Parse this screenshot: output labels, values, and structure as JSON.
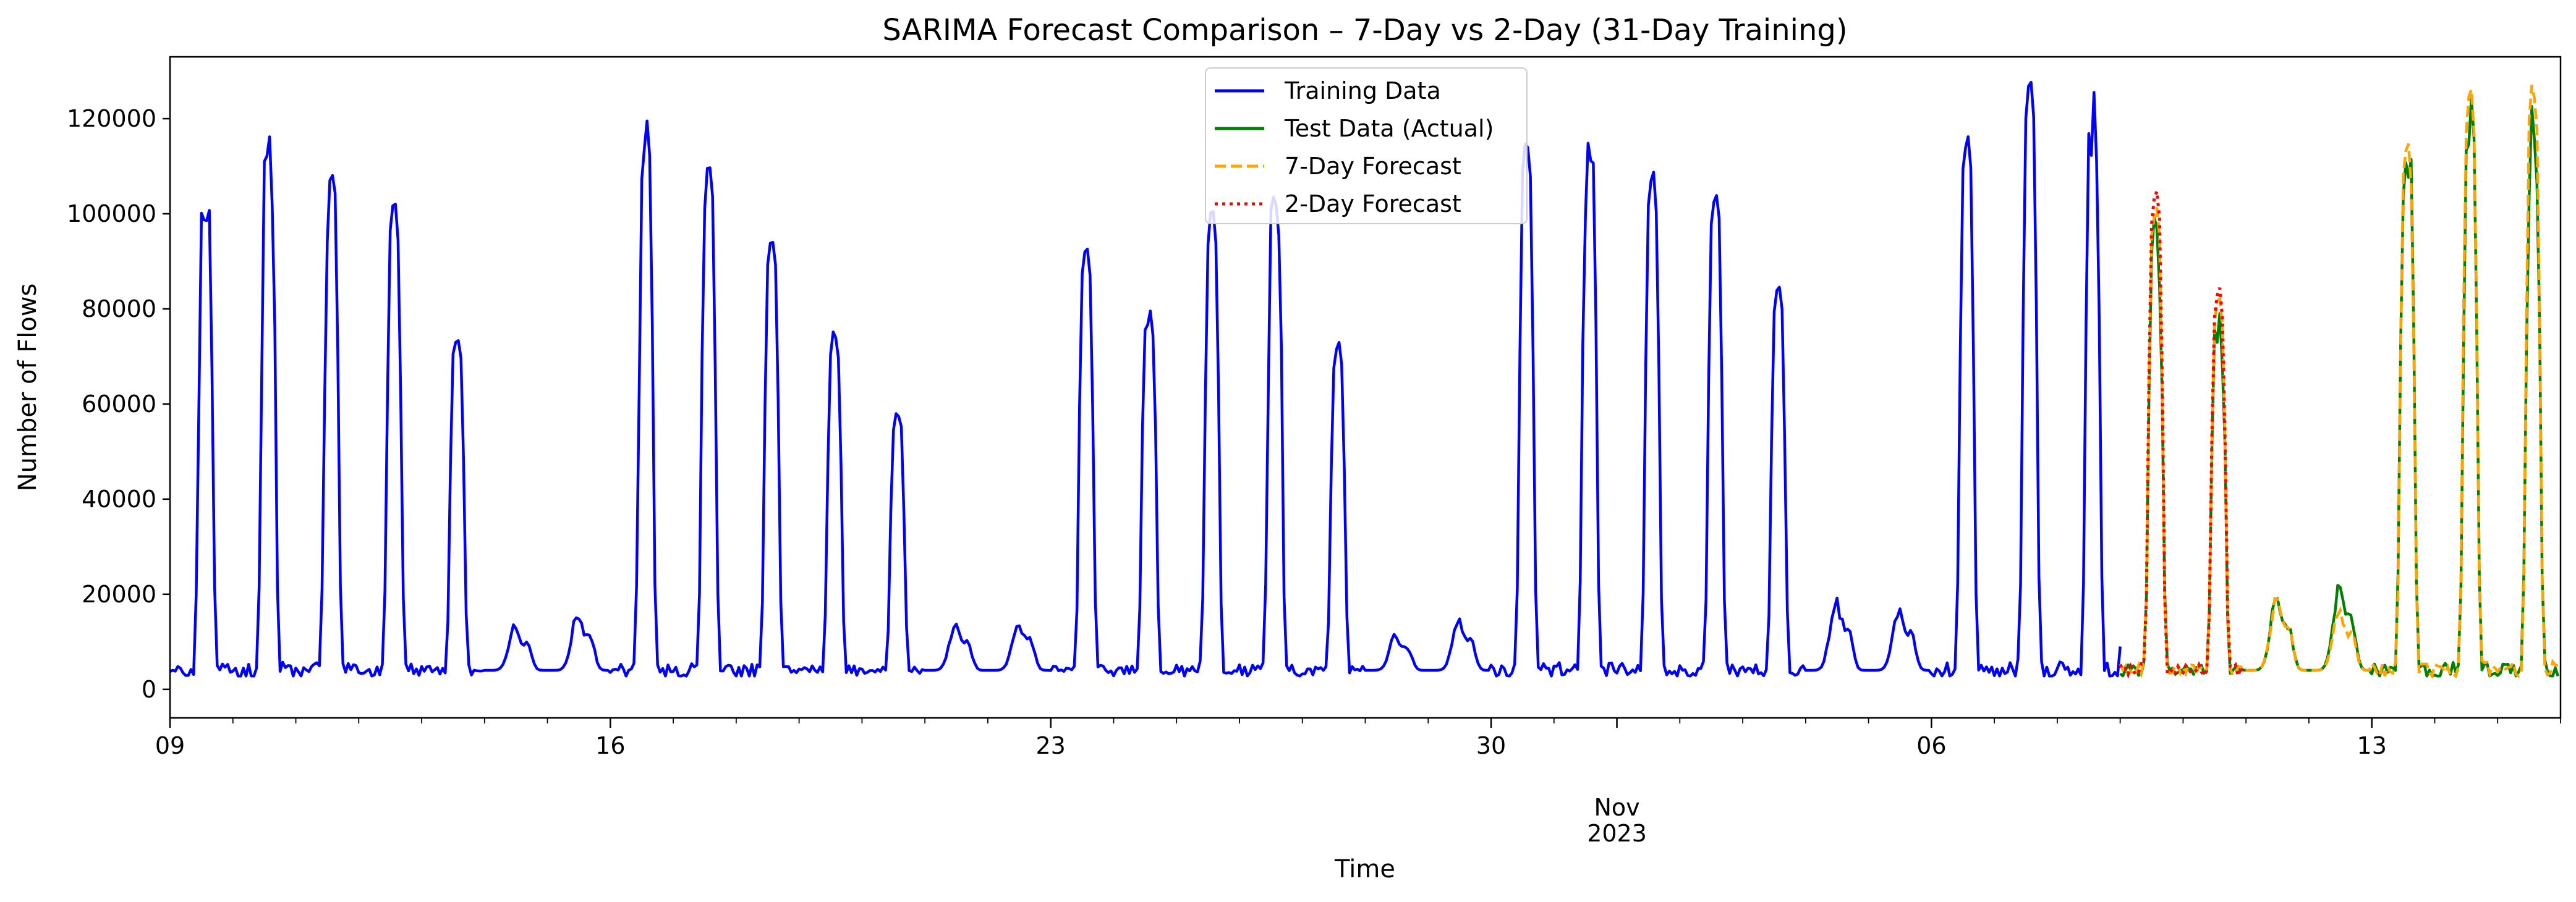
{
  "chart_data": {
    "type": "line",
    "title": "SARIMA Forecast Comparison – 7-Day vs 2-Day (31-Day Training)",
    "xlabel": "Time",
    "ylabel": "Number of Flows",
    "x_range": [
      "2023-10-09",
      "2023-11-16"
    ],
    "ylim": [
      -6000,
      133000
    ],
    "y_ticks": [
      0,
      20000,
      40000,
      60000,
      80000,
      100000,
      120000
    ],
    "x_ticks": [
      {
        "date": "2023-10-09",
        "label": "09"
      },
      {
        "date": "2023-10-16",
        "label": "16"
      },
      {
        "date": "2023-10-23",
        "label": "23"
      },
      {
        "date": "2023-10-30",
        "label": "30"
      },
      {
        "date": "2023-11-06",
        "label": "06"
      },
      {
        "date": "2023-11-13",
        "label": "13"
      }
    ],
    "x_secondary_label": {
      "date": "2023-11-01",
      "month": "Nov",
      "year": "2023"
    },
    "grid": false,
    "legend_position": "top-center",
    "training": {
      "name": "Training Data",
      "color": "#0000ff",
      "peaks": [
        {
          "day": "2023-10-09",
          "peak": 108000,
          "shape": "double"
        },
        {
          "day": "2023-10-10",
          "peak": 118000,
          "shape": "spiky"
        },
        {
          "day": "2023-10-11",
          "peak": 112000,
          "shape": "spiky"
        },
        {
          "day": "2023-10-12",
          "peak": 101000,
          "shape": "smooth"
        },
        {
          "day": "2023-10-13",
          "peak": 74000,
          "shape": "smooth"
        },
        {
          "day": "2023-10-14",
          "peak": 18000,
          "shape": "weekend"
        },
        {
          "day": "2023-10-15",
          "peak": 22000,
          "shape": "weekend"
        },
        {
          "day": "2023-10-16",
          "peak": 122000,
          "shape": "spiky"
        },
        {
          "day": "2023-10-17",
          "peak": 109000,
          "shape": "smooth"
        },
        {
          "day": "2023-10-18",
          "peak": 95000,
          "shape": "smooth"
        },
        {
          "day": "2023-10-19",
          "peak": 75000,
          "shape": "smooth"
        },
        {
          "day": "2023-10-20",
          "peak": 58000,
          "shape": "smooth"
        },
        {
          "day": "2023-10-21",
          "peak": 18000,
          "shape": "weekend"
        },
        {
          "day": "2023-10-22",
          "peak": 19000,
          "shape": "weekend"
        },
        {
          "day": "2023-10-23",
          "peak": 92000,
          "shape": "smooth"
        },
        {
          "day": "2023-10-24",
          "peak": 87000,
          "shape": "spiky"
        },
        {
          "day": "2023-10-25",
          "peak": 100000,
          "shape": "smooth"
        },
        {
          "day": "2023-10-26",
          "peak": 112000,
          "shape": "spiky"
        },
        {
          "day": "2023-10-27",
          "peak": 72000,
          "shape": "smooth"
        },
        {
          "day": "2023-10-28",
          "peak": 15000,
          "shape": "weekend"
        },
        {
          "day": "2023-10-29",
          "peak": 20000,
          "shape": "weekend"
        },
        {
          "day": "2023-10-30",
          "peak": 114000,
          "shape": "smooth"
        },
        {
          "day": "2023-10-31",
          "peak": 121000,
          "shape": "spiky"
        },
        {
          "day": "2023-11-01",
          "peak": 108000,
          "shape": "smooth"
        },
        {
          "day": "2023-11-02",
          "peak": 104000,
          "shape": "smooth"
        },
        {
          "day": "2023-11-03",
          "peak": 84000,
          "shape": "smooth"
        },
        {
          "day": "2023-11-04",
          "peak": 26000,
          "shape": "weekend"
        },
        {
          "day": "2023-11-05",
          "peak": 23000,
          "shape": "weekend"
        },
        {
          "day": "2023-11-06",
          "peak": 115000,
          "shape": "smooth"
        },
        {
          "day": "2023-11-07",
          "peak": 126000,
          "shape": "smooth"
        },
        {
          "day": "2023-11-08",
          "peak": 127000,
          "shape": "spiky"
        }
      ],
      "night_min": 4000,
      "end": {
        "date": "2023-11-09",
        "hour": 0,
        "value": 9000
      }
    },
    "test": {
      "name": "Test Data (Actual)",
      "color": "#008000",
      "peaks": [
        {
          "day": "2023-11-09",
          "peak": 100000
        },
        {
          "day": "2023-11-10",
          "peak": 81000
        },
        {
          "day": "2023-11-11",
          "peak": 26000
        },
        {
          "day": "2023-11-12",
          "peak": 30000
        },
        {
          "day": "2023-11-13",
          "peak": 122000
        },
        {
          "day": "2023-11-14",
          "peak": 125000
        },
        {
          "day": "2023-11-15",
          "peak": 124000
        }
      ]
    },
    "forecast_7day": {
      "name": "7-Day Forecast",
      "color": "#ffa500",
      "peaks": [
        {
          "day": "2023-11-09",
          "peak": 101000
        },
        {
          "day": "2023-11-10",
          "peak": 82000
        },
        {
          "day": "2023-11-11",
          "peak": 26000
        },
        {
          "day": "2023-11-12",
          "peak": 23000
        },
        {
          "day": "2023-11-13",
          "peak": 114000
        },
        {
          "day": "2023-11-14",
          "peak": 126000
        },
        {
          "day": "2023-11-15",
          "peak": 126000
        }
      ]
    },
    "forecast_2day": {
      "name": "2-Day Forecast",
      "color": "#ff0000",
      "peaks": [
        {
          "day": "2023-11-09",
          "peak": 104000
        },
        {
          "day": "2023-11-10",
          "peak": 84000
        }
      ]
    }
  }
}
